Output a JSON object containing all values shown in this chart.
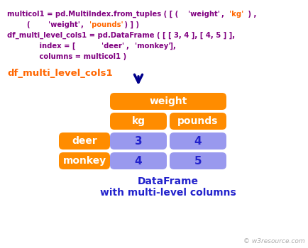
{
  "background_color": "#ffffff",
  "purple": "#800080",
  "orange_text": "#ff6600",
  "orange_box": "#ff8c00",
  "light_purple_box": "#9999ee",
  "white": "#ffffff",
  "blue_dark": "#2222cc",
  "arrow_color": "#00008b",
  "caption_color": "#2222cc",
  "watermark_color": "#aaaaaa",
  "var_label_color": "#ff6600",
  "code": {
    "line1_parts": [
      {
        "t": "multicol1 = pd.MultiIndex.from_tuples ( [ ( ",
        "c": "#800080"
      },
      {
        "t": "'weight'",
        "c": "#800080"
      },
      {
        "t": ", ",
        "c": "#800080"
      },
      {
        "t": "'kg'",
        "c": "#ff6600"
      },
      {
        "t": " ) ,",
        "c": "#800080"
      }
    ],
    "line2_parts": [
      {
        "t": "        ( ",
        "c": "#800080"
      },
      {
        "t": "'weight'",
        "c": "#800080"
      },
      {
        "t": ", ",
        "c": "#800080"
      },
      {
        "t": "'pounds'",
        "c": "#ff6600"
      },
      {
        "t": " ) ] )",
        "c": "#800080"
      }
    ],
    "line3_parts": [
      {
        "t": "df_multi_level_cols1 = pd.DataFrame ( [ [ 3, 4 ], [ 4, 5 ] ],",
        "c": "#800080"
      }
    ],
    "line4_parts": [
      {
        "t": "             index = [ ",
        "c": "#800080"
      },
      {
        "t": "'deer'",
        "c": "#800080"
      },
      {
        "t": ", ",
        "c": "#800080"
      },
      {
        "t": "'monkey'",
        "c": "#800080"
      },
      {
        "t": " ],",
        "c": "#800080"
      }
    ],
    "line5_parts": [
      {
        "t": "             columns = multicol1 )",
        "c": "#800080"
      }
    ]
  },
  "table": {
    "top_header": "weight",
    "sub_headers": [
      "kg",
      "pounds"
    ],
    "row_labels": [
      "deer",
      "monkey"
    ],
    "data": [
      [
        3,
        4
      ],
      [
        4,
        5
      ]
    ]
  },
  "caption_line1": "DataFrame",
  "caption_line2": "with multi-level columns",
  "watermark": "© w3resource.com",
  "var_label": "df_multi_level_cols1"
}
